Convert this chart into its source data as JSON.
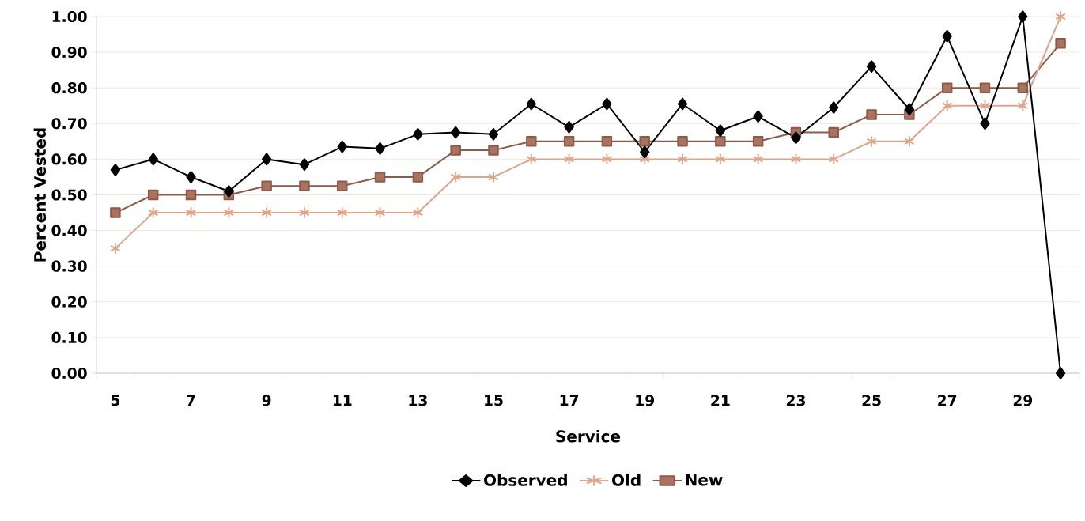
{
  "chart_data": {
    "type": "line",
    "xlabel": "Service",
    "ylabel": "Percent Vested",
    "categories": [
      "5",
      null,
      "7",
      null,
      "9",
      null,
      "11",
      null,
      "13",
      null,
      "15",
      null,
      "17",
      null,
      "19",
      null,
      "21",
      null,
      "23",
      null,
      "25",
      null,
      "27",
      null,
      "29",
      null
    ],
    "series": [
      {
        "name": "Observed",
        "color": "#000000",
        "marker": "diamond",
        "values": [
          0.57,
          0.6,
          0.55,
          0.51,
          0.6,
          0.585,
          0.635,
          0.63,
          0.67,
          0.675,
          0.67,
          0.755,
          0.69,
          0.755,
          0.62,
          0.755,
          0.68,
          0.72,
          0.66,
          0.745,
          0.86,
          0.74,
          0.945,
          0.7,
          1.0,
          0.0
        ]
      },
      {
        "name": "Old",
        "color": "#dba58e",
        "marker": "cross",
        "values": [
          0.35,
          0.45,
          0.45,
          0.45,
          0.45,
          0.45,
          0.45,
          0.45,
          0.45,
          0.55,
          0.55,
          0.6,
          0.6,
          0.6,
          0.6,
          0.6,
          0.6,
          0.6,
          0.6,
          0.6,
          0.65,
          0.65,
          0.75,
          0.75,
          0.75,
          1.0
        ]
      },
      {
        "name": "New",
        "color": "#8b5a4a",
        "marker": "square",
        "values": [
          0.45,
          0.5,
          0.5,
          0.5,
          0.525,
          0.525,
          0.525,
          0.55,
          0.55,
          0.625,
          0.625,
          0.65,
          0.65,
          0.65,
          0.65,
          0.65,
          0.65,
          0.65,
          0.675,
          0.675,
          0.725,
          0.725,
          0.8,
          0.8,
          0.8,
          0.925
        ]
      }
    ],
    "ylim": [
      0,
      1
    ],
    "yticks": [
      {
        "value": 0,
        "label": "0.00"
      },
      {
        "value": 0.1,
        "label": "0.10"
      },
      {
        "value": 0.2,
        "label": "0.20"
      },
      {
        "value": 0.3,
        "label": "0.30"
      },
      {
        "value": 0.4,
        "label": "0.40"
      },
      {
        "value": 0.5,
        "label": "0.50"
      },
      {
        "value": 0.6,
        "label": "0.60"
      },
      {
        "value": 0.7,
        "label": "0.70"
      },
      {
        "value": 0.8,
        "label": "0.80"
      },
      {
        "value": 0.9,
        "label": "0.90"
      },
      {
        "value": 1,
        "label": "1.00"
      }
    ],
    "grid": "y",
    "legend": "bottom",
    "line_style": "solid"
  }
}
